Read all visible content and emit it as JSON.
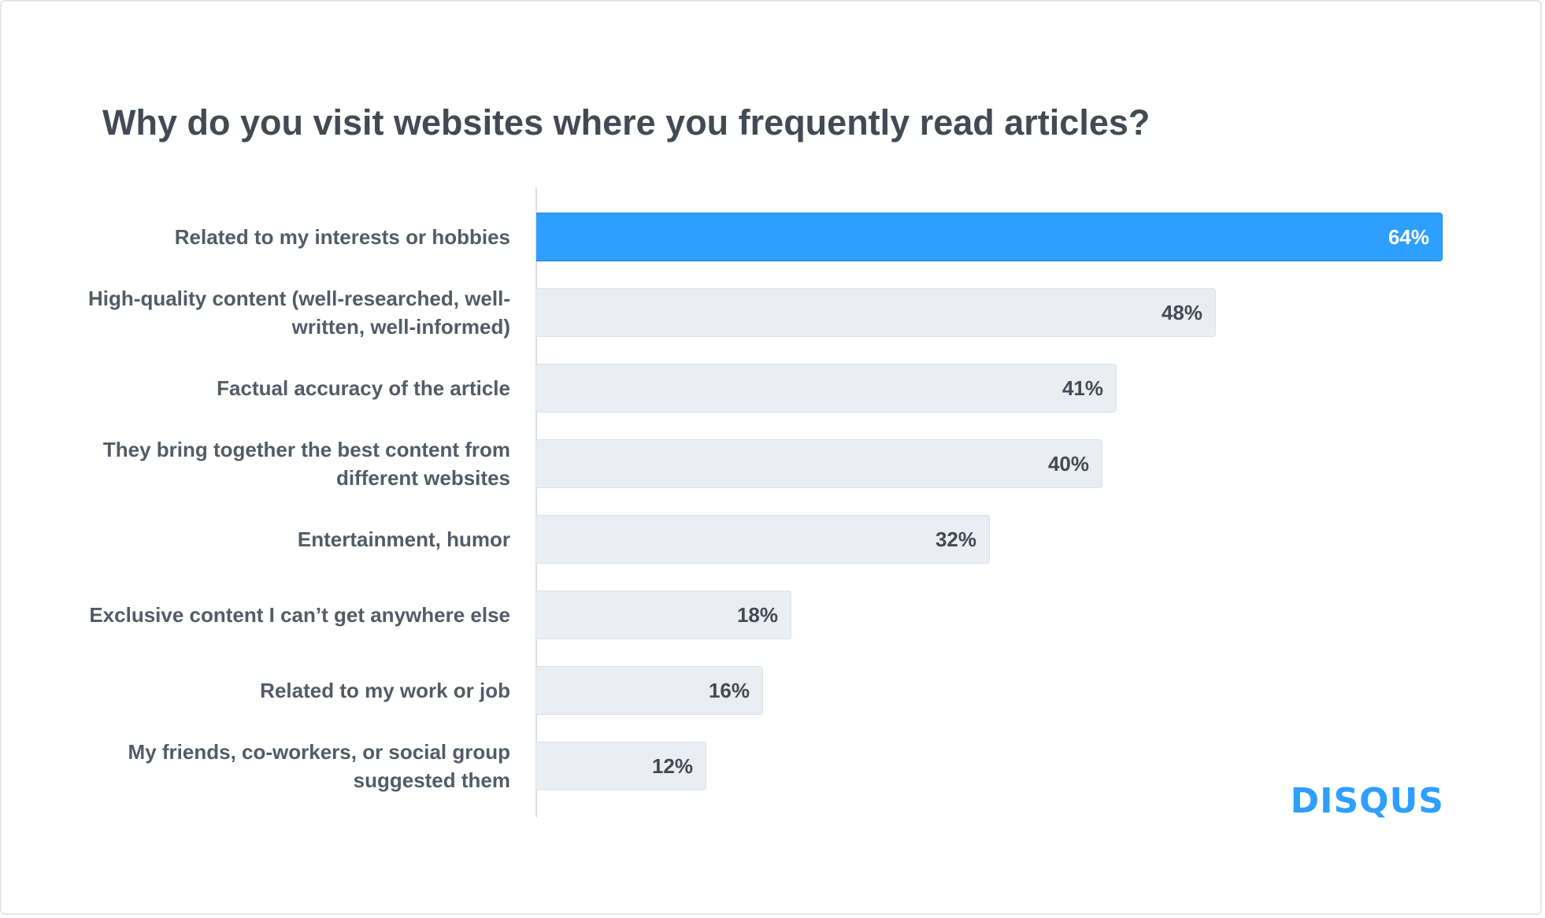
{
  "brand": {
    "logo_text": "DISQUS",
    "accent_color": "#2e9fff",
    "bar_color": "#eaedf1"
  },
  "chart_data": {
    "type": "bar",
    "orientation": "horizontal",
    "title": "Why do you visit websites where you frequently read articles?",
    "xlabel": "",
    "ylabel": "",
    "xlim": [
      0,
      64
    ],
    "grid": false,
    "highlight_index": 0,
    "categories": [
      "Related to my interests or hobbies",
      "High-quality content (well-researched, well-written, well-informed)",
      "Factual accuracy of the article",
      "They bring together the best content from different websites",
      "Entertainment, humor",
      "Exclusive content I can’t get anywhere else",
      "Related to my work or job",
      "My friends, co-workers, or social group suggested them"
    ],
    "values": [
      64,
      48,
      41,
      40,
      32,
      18,
      16,
      12
    ],
    "value_labels": [
      "64%",
      "48%",
      "41%",
      "40%",
      "32%",
      "18%",
      "16%",
      "12%"
    ]
  }
}
